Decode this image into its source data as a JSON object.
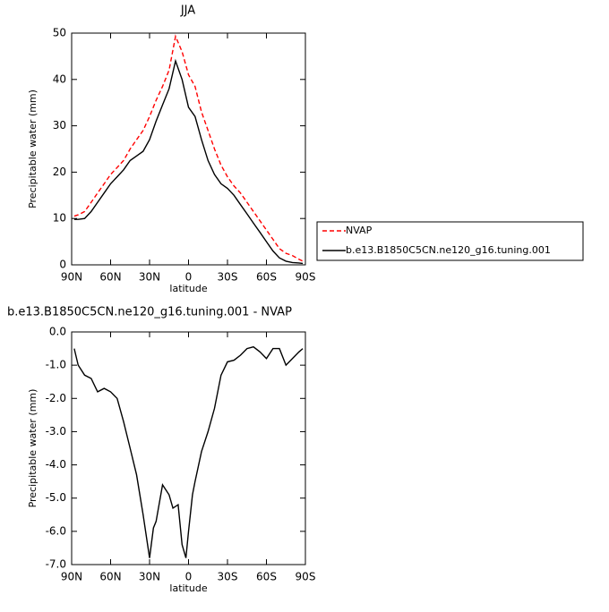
{
  "chart_data": [
    {
      "type": "line",
      "title": "JJA",
      "xlabel": "latitude",
      "ylabel": "Precipitable water (mm)",
      "x": [
        88,
        85,
        80,
        75,
        70,
        65,
        60,
        55,
        50,
        45,
        40,
        35,
        30,
        25,
        20,
        15,
        10,
        5,
        0,
        -5,
        -10,
        -15,
        -20,
        -25,
        -30,
        -35,
        -40,
        -45,
        -50,
        -55,
        -60,
        -65,
        -70,
        -75,
        -80,
        -85,
        -88
      ],
      "series": [
        {
          "name": "NVAP",
          "color": "#ff0000",
          "style": "dashed",
          "values": [
            10.5,
            10.8,
            11.5,
            13.5,
            15.5,
            17.5,
            19.5,
            21,
            22.5,
            25,
            27,
            29,
            32,
            35.5,
            38.5,
            42,
            49.3,
            46,
            41,
            38.5,
            33,
            29,
            25,
            21.5,
            19,
            17,
            15.5,
            13.5,
            11.5,
            9.5,
            7.5,
            5.5,
            3.5,
            2.5,
            2,
            1.2,
            0.8
          ]
        },
        {
          "name": "b.e13.B1850C5CN.ne120_g16.tuning.001",
          "color": "#000000",
          "style": "solid",
          "values": [
            9.8,
            9.8,
            10,
            11.5,
            13.5,
            15.5,
            17.5,
            19,
            20.5,
            22.5,
            23.5,
            24.5,
            27,
            31,
            34.5,
            38,
            44,
            40,
            34,
            32,
            27,
            22.5,
            19.5,
            17.5,
            16.5,
            15,
            13,
            11,
            9,
            7,
            5,
            3,
            1.5,
            0.8,
            0.5,
            0.4,
            0.3
          ]
        }
      ],
      "xlim": [
        90,
        -90
      ],
      "xticks": [
        {
          "value": 90,
          "label": "90N"
        },
        {
          "value": 60,
          "label": "60N"
        },
        {
          "value": 30,
          "label": "30N"
        },
        0,
        {
          "value": -30,
          "label": "30S"
        },
        {
          "value": -60,
          "label": "60S"
        },
        {
          "value": -90,
          "label": "90S"
        }
      ],
      "ylim": [
        0,
        50
      ],
      "yticks": [
        0,
        10,
        20,
        30,
        40,
        50
      ],
      "legend": "right"
    },
    {
      "type": "line",
      "title": "b.e13.B1850C5CN.ne120_g16.tuning.001  -  NVAP",
      "xlabel": "latitude",
      "ylabel": "Precipitable water (mm)",
      "x": [
        88,
        85,
        80,
        75,
        70,
        65,
        60,
        55,
        50,
        45,
        40,
        35,
        30,
        27,
        25,
        20,
        15,
        12,
        8,
        5,
        2,
        0,
        -3,
        -5,
        -10,
        -15,
        -20,
        -25,
        -30,
        -35,
        -40,
        -45,
        -50,
        -55,
        -60,
        -65,
        -70,
        -75,
        -80,
        -85,
        -88
      ],
      "series": [
        {
          "color": "#000000",
          "style": "solid",
          "values": [
            -0.5,
            -1.0,
            -1.3,
            -1.4,
            -1.8,
            -1.7,
            -1.8,
            -2.0,
            -2.7,
            -3.5,
            -4.3,
            -5.5,
            -6.8,
            -5.9,
            -5.7,
            -4.6,
            -4.9,
            -5.3,
            -5.2,
            -6.4,
            -6.8,
            -6.0,
            -4.9,
            -4.5,
            -3.6,
            -3.0,
            -2.3,
            -1.3,
            -0.9,
            -0.85,
            -0.7,
            -0.5,
            -0.45,
            -0.6,
            -0.8,
            -0.5,
            -0.5,
            -1.0,
            -0.8,
            -0.6,
            -0.5
          ]
        }
      ],
      "xlim": [
        90,
        -90
      ],
      "xticks": [
        {
          "value": 90,
          "label": "90N"
        },
        {
          "value": 60,
          "label": "60N"
        },
        {
          "value": 30,
          "label": "30N"
        },
        0,
        {
          "value": -30,
          "label": "30S"
        },
        {
          "value": -60,
          "label": "60S"
        },
        {
          "value": -90,
          "label": "90S"
        }
      ],
      "ylim": [
        -7,
        0
      ],
      "yticks": [
        {
          "value": -7,
          "label": "-7.0"
        },
        {
          "value": -6,
          "label": "-6.0"
        },
        {
          "value": -5,
          "label": "-5.0"
        },
        {
          "value": -4,
          "label": "-4.0"
        },
        {
          "value": -3,
          "label": "-3.0"
        },
        {
          "value": -2,
          "label": "-2.0"
        },
        {
          "value": -1,
          "label": "-1.0"
        },
        {
          "value": 0,
          "label": "0.0"
        }
      ]
    }
  ]
}
